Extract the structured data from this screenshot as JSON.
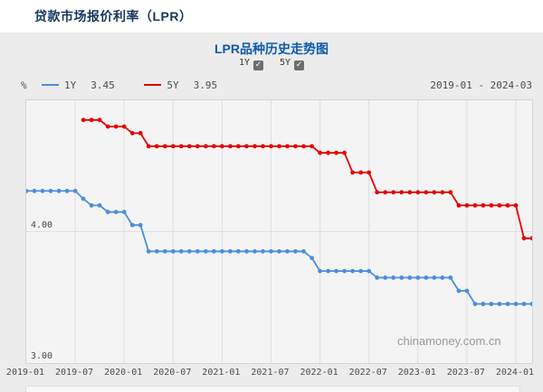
{
  "page": {
    "title": "贷款市场报价利率（LPR）"
  },
  "chart": {
    "title": "LPR品种历史走势图",
    "unit_label": "%",
    "date_range": "2019-01 - 2024-03",
    "watermark": "chinamoney.com.cn",
    "toggles": [
      {
        "label": "1Y",
        "checked": true
      },
      {
        "label": "5Y",
        "checked": true
      }
    ],
    "legend": [
      {
        "label": "1Y",
        "value": "3.45"
      },
      {
        "label": "5Y",
        "value": "3.95"
      }
    ]
  },
  "icons": {
    "checkmark": "✓"
  },
  "colors": {
    "series_1y": "#4a8fdc",
    "series_5y": "#e60000",
    "panel_bg": "#ececec",
    "plot_bg": "#f4f4f4",
    "grid": "#dfdfe3",
    "title_navy": "#17375e",
    "title_blue": "#0d5bab",
    "axis_text": "#4d4d4d",
    "watermark": "#9a9a9a"
  },
  "chart_data": {
    "type": "line",
    "title": "LPR品种历史走势图",
    "ylabel": "%",
    "ylim": [
      3.0,
      5.0
    ],
    "grid": true,
    "legend_position": "top-left",
    "x": [
      "2019-01",
      "2019-02",
      "2019-03",
      "2019-04",
      "2019-05",
      "2019-06",
      "2019-07",
      "2019-08",
      "2019-09",
      "2019-10",
      "2019-11",
      "2019-12",
      "2020-01",
      "2020-02",
      "2020-03",
      "2020-04",
      "2020-05",
      "2020-06",
      "2020-07",
      "2020-08",
      "2020-09",
      "2020-10",
      "2020-11",
      "2020-12",
      "2021-01",
      "2021-02",
      "2021-03",
      "2021-04",
      "2021-05",
      "2021-06",
      "2021-07",
      "2021-08",
      "2021-09",
      "2021-10",
      "2021-11",
      "2021-12",
      "2022-01",
      "2022-02",
      "2022-03",
      "2022-04",
      "2022-05",
      "2022-06",
      "2022-07",
      "2022-08",
      "2022-09",
      "2022-10",
      "2022-11",
      "2022-12",
      "2023-01",
      "2023-02",
      "2023-03",
      "2023-04",
      "2023-05",
      "2023-06",
      "2023-07",
      "2023-08",
      "2023-09",
      "2023-10",
      "2023-11",
      "2023-12",
      "2024-01",
      "2024-02",
      "2024-03"
    ],
    "x_tick_labels": [
      "2019-01",
      "2019-07",
      "2020-01",
      "2020-07",
      "2021-01",
      "2021-07",
      "2022-01",
      "2022-07",
      "2023-01",
      "2023-07",
      "2024-01"
    ],
    "x_tick_positions": [
      0,
      6,
      12,
      18,
      24,
      30,
      36,
      42,
      48,
      54,
      60
    ],
    "y_ticks": [
      {
        "label": "4.00",
        "value": 4.0
      },
      {
        "label": "3.00",
        "value": 3.0
      }
    ],
    "series": [
      {
        "name": "1Y",
        "color": "#4a8fdc",
        "current": "3.45",
        "values": [
          4.31,
          4.31,
          4.31,
          4.31,
          4.31,
          4.31,
          4.31,
          4.25,
          4.2,
          4.2,
          4.15,
          4.15,
          4.15,
          4.05,
          4.05,
          3.85,
          3.85,
          3.85,
          3.85,
          3.85,
          3.85,
          3.85,
          3.85,
          3.85,
          3.85,
          3.85,
          3.85,
          3.85,
          3.85,
          3.85,
          3.85,
          3.85,
          3.85,
          3.85,
          3.85,
          3.8,
          3.7,
          3.7,
          3.7,
          3.7,
          3.7,
          3.7,
          3.7,
          3.65,
          3.65,
          3.65,
          3.65,
          3.65,
          3.65,
          3.65,
          3.65,
          3.65,
          3.65,
          3.55,
          3.55,
          3.45,
          3.45,
          3.45,
          3.45,
          3.45,
          3.45,
          3.45,
          3.45
        ]
      },
      {
        "name": "5Y",
        "color": "#e60000",
        "current": "3.95",
        "values": [
          null,
          null,
          null,
          null,
          null,
          null,
          null,
          4.85,
          4.85,
          4.85,
          4.8,
          4.8,
          4.8,
          4.75,
          4.75,
          4.65,
          4.65,
          4.65,
          4.65,
          4.65,
          4.65,
          4.65,
          4.65,
          4.65,
          4.65,
          4.65,
          4.65,
          4.65,
          4.65,
          4.65,
          4.65,
          4.65,
          4.65,
          4.65,
          4.65,
          4.65,
          4.6,
          4.6,
          4.6,
          4.6,
          4.45,
          4.45,
          4.45,
          4.3,
          4.3,
          4.3,
          4.3,
          4.3,
          4.3,
          4.3,
          4.3,
          4.3,
          4.3,
          4.2,
          4.2,
          4.2,
          4.2,
          4.2,
          4.2,
          4.2,
          4.2,
          3.95,
          3.95
        ]
      }
    ]
  }
}
